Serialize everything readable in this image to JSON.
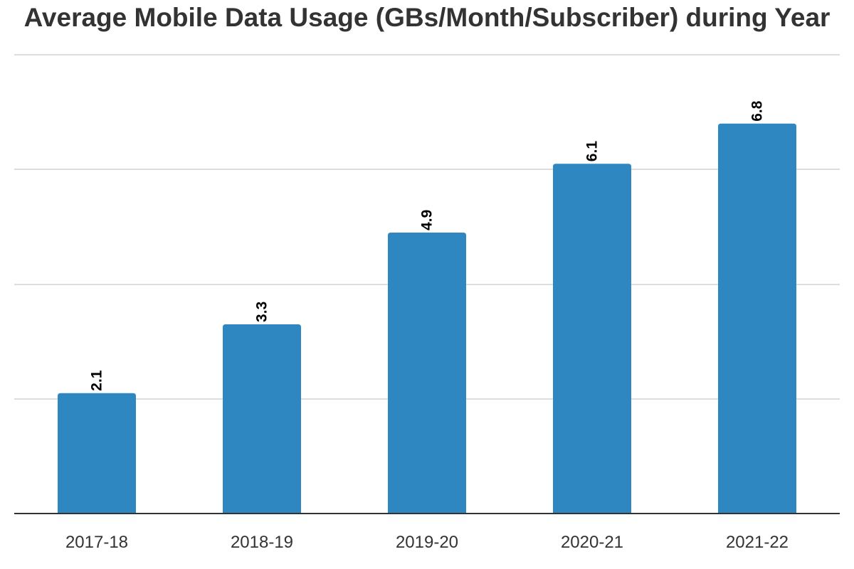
{
  "colors": {
    "bar": "#2e87c0",
    "title": "#333333",
    "gridline": "#dddddd",
    "baseline": "#333333"
  },
  "chart_data": {
    "type": "bar",
    "title": "Average Mobile Data Usage (GBs/Month/Subscriber) during Year",
    "xlabel": "",
    "ylabel": "",
    "categories": [
      "2017-18",
      "2018-19",
      "2019-20",
      "2020-21",
      "2021-22"
    ],
    "values": [
      2.1,
      3.3,
      4.9,
      6.1,
      6.8
    ],
    "data_labels": [
      "2.1",
      "3.3",
      "4.9",
      "6.1",
      "6.8"
    ],
    "ylim": [
      0,
      8
    ],
    "y_gridlines": [
      2,
      4,
      6,
      8
    ],
    "grid": true,
    "legend": "none",
    "data_label_orientation": "vertical"
  }
}
